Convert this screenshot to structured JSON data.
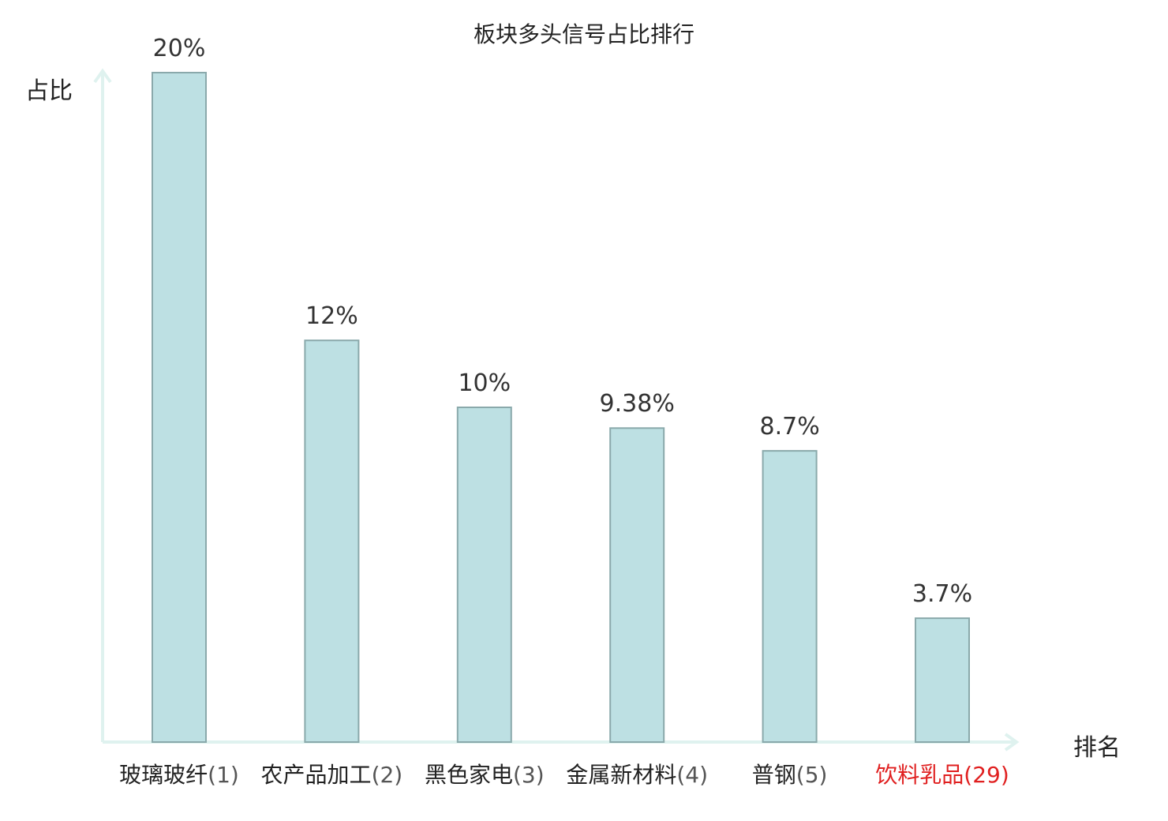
{
  "chart_data": {
    "type": "bar",
    "title": "板块多头信号占比排行",
    "ylabel": "占比",
    "xlabel": "排名",
    "categories": [
      {
        "name": "玻璃玻纤",
        "rank": "(1)"
      },
      {
        "name": "农产品加工",
        "rank": "(2)"
      },
      {
        "name": "黑色家电",
        "rank": "(3)"
      },
      {
        "name": "金属新材料",
        "rank": "(4)"
      },
      {
        "name": "普钢",
        "rank": "(5)"
      },
      {
        "name": "饮料乳品",
        "rank": "(29)"
      }
    ],
    "values": [
      20,
      12,
      10,
      9.38,
      8.7,
      3.7
    ],
    "value_labels": [
      "20%",
      "12%",
      "10%",
      "9.38%",
      "8.7%",
      "3.7%"
    ],
    "ylim": [
      0,
      20
    ],
    "grid": false,
    "highlight_index": 5,
    "colors": {
      "bar_fill": "#bde0e3",
      "bar_stroke": "#8aa9ab",
      "axis": "#dff2ef",
      "highlight_text": "#e02020"
    }
  }
}
